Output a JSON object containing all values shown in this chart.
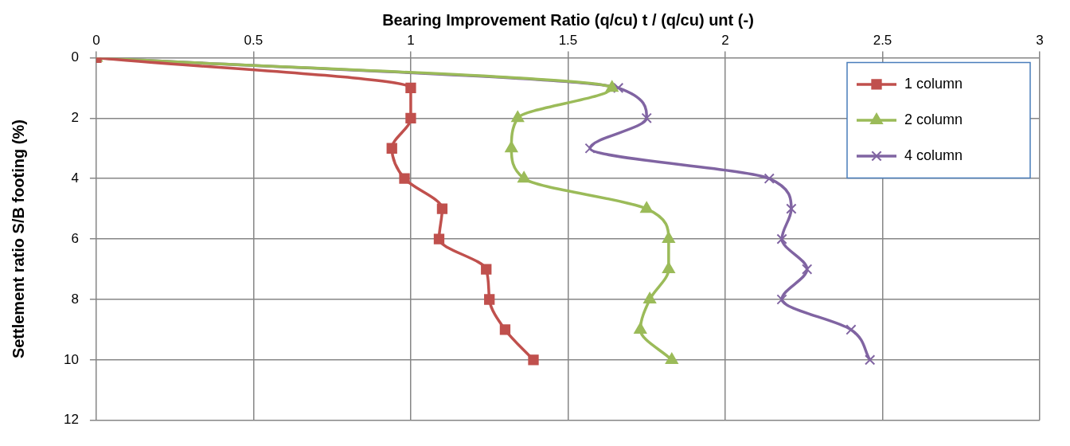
{
  "chart_data": {
    "type": "line",
    "xlabel": "Bearing Improvement Ratio (q/cu) t / (q/cu) unt (-)",
    "ylabel": "Settlement ratio S/B footing (%)",
    "xlim": [
      0,
      3
    ],
    "xticks": [
      0,
      0.5,
      1,
      1.5,
      2,
      2.5,
      3
    ],
    "ylim": [
      12,
      0
    ],
    "yticks": [
      0,
      2,
      4,
      6,
      8,
      10,
      12
    ],
    "grid": true,
    "legend": "top right",
    "series": [
      {
        "name": "1 column",
        "color": "#c0504d",
        "marker": "square",
        "x": [
          0,
          1.0,
          1.0,
          0.94,
          0.98,
          1.1,
          1.09,
          1.24,
          1.25,
          1.3,
          1.39
        ],
        "values": [
          0,
          1,
          2,
          3,
          4,
          5,
          6,
          7,
          8,
          9,
          10
        ]
      },
      {
        "name": "2 column",
        "color": "#9bbb59",
        "marker": "triangle",
        "x": [
          0,
          1.64,
          1.34,
          1.32,
          1.36,
          1.75,
          1.82,
          1.82,
          1.76,
          1.73,
          1.83
        ],
        "values": [
          0,
          1,
          2,
          3,
          4,
          5,
          6,
          7,
          8,
          9,
          10
        ]
      },
      {
        "name": "4 column",
        "color": "#8064a2",
        "marker": "cross",
        "x": [
          0,
          1.66,
          1.75,
          1.57,
          2.14,
          2.21,
          2.18,
          2.26,
          2.18,
          2.4,
          2.46
        ],
        "values": [
          0,
          1,
          2,
          3,
          4,
          5,
          6,
          7,
          8,
          9,
          10
        ]
      }
    ]
  }
}
